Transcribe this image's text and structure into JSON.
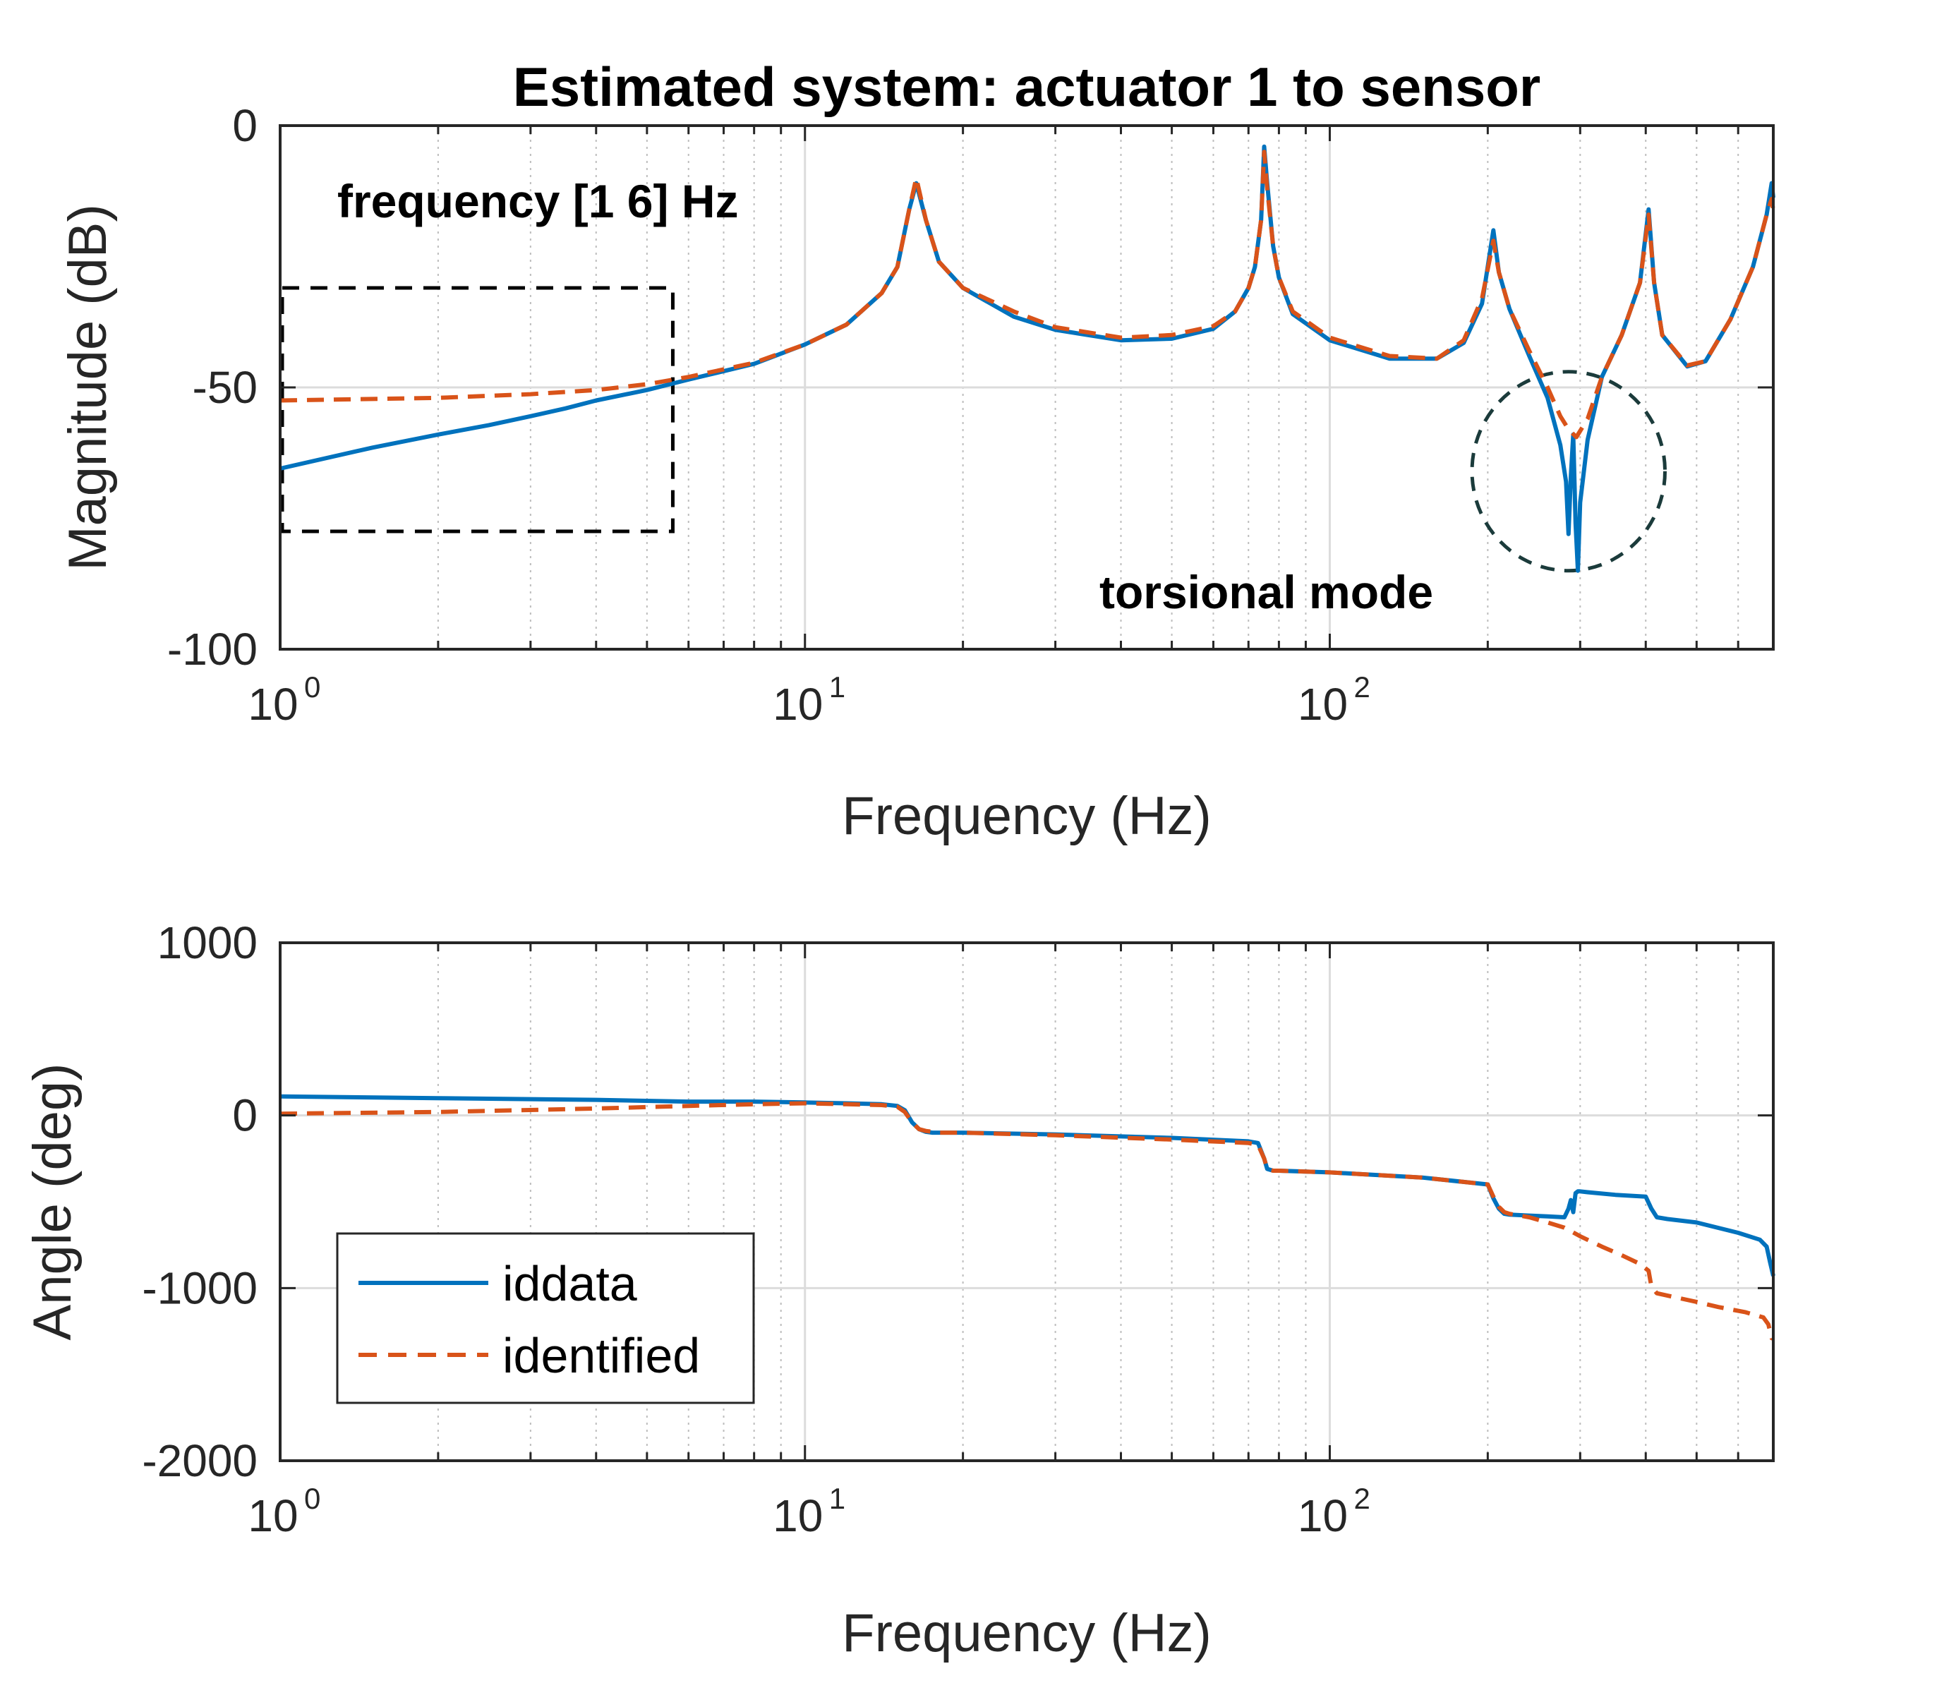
{
  "colors": {
    "iddata": "#0072BD",
    "identified": "#D95319",
    "axes": "#262626",
    "grid_major": "#dcdcdc",
    "grid_minor": "#bdbdbd",
    "box": "#000000",
    "circle": "#1b3b3b"
  },
  "chart_data": [
    {
      "type": "line",
      "title": "Estimated system: actuator 1 to sensor",
      "xlabel": "Frequency (Hz)",
      "ylabel": "Magnitude (dB)",
      "xscale": "log",
      "xlim": [
        1,
        700
      ],
      "ylim": [
        -100,
        0
      ],
      "grid": "on",
      "xtick_base": [
        "10",
        "10",
        "10"
      ],
      "xtick_exp": [
        "0",
        "1",
        "2"
      ],
      "yticks": [
        "-100",
        "-50",
        "0"
      ],
      "annotations": {
        "box_label": "frequency [1 6] Hz",
        "box_range_hz": [
          1,
          5.6
        ],
        "box_range_db": [
          -77.5,
          -31
        ],
        "circle_label": "torsional mode",
        "circle_center_hz": 285,
        "circle_center_db": -66,
        "circle_radius_db": 19
      },
      "series": [
        {
          "name": "iddata",
          "style": "solid",
          "x": [
            1,
            1.5,
            2,
            2.5,
            3,
            3.5,
            4,
            5,
            6,
            8,
            10,
            12,
            14,
            15,
            15.8,
            16.3,
            17,
            18,
            20,
            25,
            30,
            40,
            50,
            60,
            66,
            70,
            72,
            74,
            75,
            76,
            78,
            80,
            85,
            100,
            130,
            160,
            180,
            195,
            205,
            210,
            220,
            240,
            260,
            275,
            282,
            285,
            288,
            291,
            294,
            297,
            300,
            310,
            330,
            360,
            390,
            405,
            415,
            430,
            480,
            520,
            580,
            640,
            680,
            695,
            715,
            740,
            760,
            800
          ],
          "y": [
            -65.5,
            -61.5,
            -59,
            -57.2,
            -55.5,
            -54,
            -52.5,
            -50.5,
            -48.5,
            -45.5,
            -41.8,
            -38,
            -32,
            -27,
            -16,
            -11,
            -18,
            -26,
            -31,
            -36.5,
            -39,
            -41,
            -40.7,
            -38.8,
            -35.5,
            -31,
            -27,
            -18,
            -4,
            -11,
            -23,
            -29,
            -36,
            -41,
            -44.5,
            -44.5,
            -41.5,
            -34,
            -20,
            -28,
            -35,
            -44,
            -52,
            -61,
            -68,
            -78,
            -67,
            -59,
            -76,
            -85,
            -72,
            -60,
            -48,
            -40,
            -30,
            -16,
            -30,
            -40,
            -46,
            -45,
            -37,
            -27,
            -17,
            -11,
            -22,
            -31,
            -37,
            -43
          ]
        },
        {
          "name": "identified",
          "style": "dashed",
          "x": [
            1,
            2,
            3,
            4,
            5,
            6,
            8,
            10,
            12,
            14,
            15,
            15.8,
            16.3,
            17,
            18,
            20,
            25,
            30,
            40,
            50,
            60,
            66,
            70,
            72,
            74,
            75,
            76,
            78,
            80,
            85,
            100,
            130,
            160,
            180,
            195,
            205,
            210,
            220,
            240,
            260,
            275,
            285,
            295,
            310,
            330,
            360,
            390,
            405,
            415,
            430,
            480,
            520,
            580,
            640,
            680,
            695,
            715,
            740,
            760,
            800
          ],
          "y": [
            -52.5,
            -52,
            -51.3,
            -50.5,
            -49.4,
            -48,
            -45.3,
            -41.8,
            -38,
            -32,
            -27,
            -16,
            -10,
            -18,
            -26,
            -31,
            -35.5,
            -38.5,
            -40.5,
            -40,
            -38.3,
            -35.5,
            -31,
            -27,
            -18,
            -5,
            -12,
            -23,
            -29,
            -35.5,
            -40.5,
            -44,
            -44.5,
            -41,
            -33,
            -22,
            -28,
            -35,
            -43,
            -50,
            -55.5,
            -58,
            -59.5,
            -56,
            -48,
            -40,
            -30,
            -17,
            -30,
            -40,
            -45.8,
            -45,
            -37,
            -27,
            -17,
            -14,
            -23,
            -31,
            -37,
            -43
          ]
        }
      ]
    },
    {
      "type": "line",
      "title": "",
      "xlabel": "Frequency (Hz)",
      "ylabel": "Angle (deg)",
      "xscale": "log",
      "xlim": [
        1,
        700
      ],
      "ylim": [
        -2000,
        1000
      ],
      "grid": "on",
      "legend": "bottom-left",
      "xtick_base": [
        "10",
        "10",
        "10"
      ],
      "xtick_exp": [
        "0",
        "1",
        "2"
      ],
      "yticks": [
        "-2000",
        "-1000",
        "0",
        "1000"
      ],
      "series": [
        {
          "name": "iddata",
          "style": "solid",
          "x": [
            1,
            2,
            4,
            6,
            8,
            10,
            12,
            14,
            15,
            15.5,
            16,
            16.5,
            17,
            17.5,
            18,
            20,
            30,
            50,
            70,
            73,
            75,
            76,
            78,
            80,
            100,
            150,
            200,
            205,
            210,
            215,
            220,
            240,
            260,
            280,
            285,
            288,
            291,
            294,
            297,
            300,
            310,
            350,
            400,
            410,
            420,
            440,
            500,
            600,
            660,
            680,
            690,
            700,
            720,
            760,
            800
          ],
          "y": [
            110,
            100,
            90,
            80,
            80,
            75,
            70,
            65,
            55,
            30,
            -40,
            -80,
            -95,
            -100,
            -100,
            -100,
            -110,
            -130,
            -150,
            -160,
            -250,
            -310,
            -320,
            -320,
            -330,
            -360,
            -400,
            -480,
            -540,
            -570,
            -575,
            -580,
            -585,
            -590,
            -540,
            -490,
            -560,
            -450,
            -440,
            -440,
            -445,
            -460,
            -470,
            -540,
            -590,
            -600,
            -620,
            -680,
            -720,
            -760,
            -850,
            -930,
            -950,
            -980,
            -1000
          ]
        },
        {
          "name": "identified",
          "style": "dashed",
          "x": [
            1,
            2,
            4,
            6,
            8,
            10,
            12,
            14,
            15,
            15.5,
            16,
            16.5,
            17,
            17.5,
            18,
            20,
            30,
            50,
            70,
            73,
            75,
            76,
            78,
            80,
            100,
            150,
            200,
            205,
            210,
            215,
            220,
            240,
            260,
            280,
            300,
            330,
            360,
            390,
            405,
            410,
            420,
            450,
            500,
            550,
            620,
            670,
            685,
            695,
            710,
            750,
            800
          ],
          "y": [
            10,
            20,
            40,
            55,
            65,
            70,
            65,
            60,
            50,
            20,
            -40,
            -80,
            -90,
            -95,
            -100,
            -100,
            -115,
            -140,
            -160,
            -170,
            -250,
            -310,
            -320,
            -320,
            -330,
            -360,
            -400,
            -470,
            -530,
            -560,
            -570,
            -590,
            -620,
            -650,
            -700,
            -760,
            -810,
            -860,
            -900,
            -990,
            -1030,
            -1050,
            -1080,
            -1110,
            -1140,
            -1170,
            -1210,
            -1290,
            -1300,
            -1320,
            -1340
          ]
        }
      ]
    }
  ]
}
